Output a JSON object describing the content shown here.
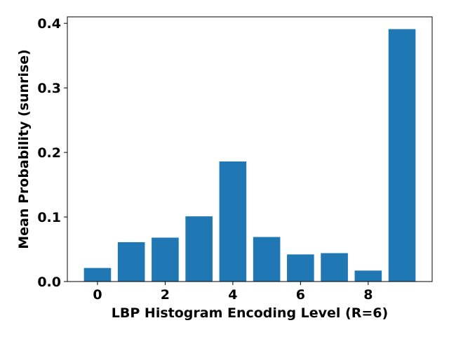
{
  "chart_data": {
    "type": "bar",
    "title": "",
    "xlabel": "LBP Histogram Encoding Level (R=6)",
    "ylabel": "Mean Probability (sunrise)",
    "categories": [
      0,
      1,
      2,
      3,
      4,
      5,
      6,
      7,
      8,
      9
    ],
    "values": [
      0.021,
      0.061,
      0.068,
      0.101,
      0.186,
      0.069,
      0.042,
      0.044,
      0.017,
      0.391
    ],
    "xlim": [
      -0.89,
      9.89
    ],
    "ylim": [
      0,
      0.41
    ],
    "xticks": [
      0,
      2,
      4,
      6,
      8
    ],
    "yticks": [
      0.0,
      0.1,
      0.2,
      0.3,
      0.4
    ],
    "xtick_labels": [
      "0",
      "2",
      "4",
      "6",
      "8"
    ],
    "ytick_labels": [
      "0.0",
      "0.1",
      "0.2",
      "0.3",
      "0.4"
    ],
    "bar_color": "#1f77b4",
    "grid": false,
    "legend": "none"
  }
}
